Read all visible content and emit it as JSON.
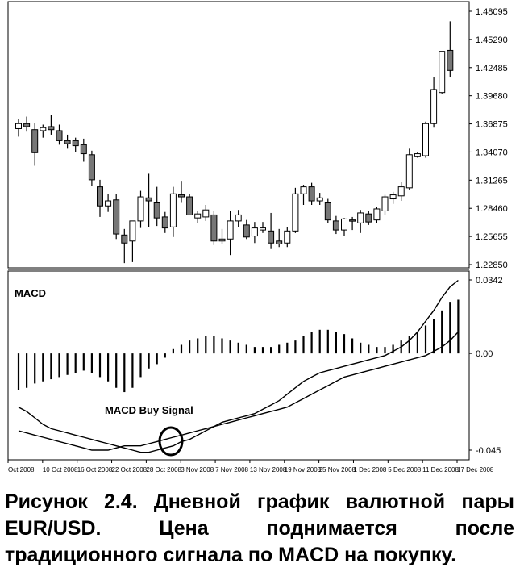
{
  "chart_data": [
    {
      "type": "candlestick",
      "title": "",
      "x_labels": [
        "Oct 2008",
        "10 Oct 2008",
        "16 Oct 2008",
        "22 Oct 2008",
        "28 Oct 2008",
        "3 Nov 2008",
        "7 Nov 2008",
        "13 Nov 2008",
        "19 Nov 2008",
        "25 Nov 2008",
        "1 Dec 2008",
        "5 Dec 2008",
        "11 Dec 2008",
        "17 Dec 2008"
      ],
      "y_ticks": [
        "1.48095",
        "1.45290",
        "1.42485",
        "1.39680",
        "1.36875",
        "1.34070",
        "1.31265",
        "1.28460",
        "1.25655",
        "1.22850"
      ],
      "ylim": [
        1.2285,
        1.48095
      ],
      "candles": [
        {
          "o": 1.364,
          "h": 1.374,
          "l": 1.356,
          "c": 1.369
        },
        {
          "o": 1.369,
          "h": 1.376,
          "l": 1.361,
          "c": 1.366
        },
        {
          "o": 1.363,
          "h": 1.37,
          "l": 1.327,
          "c": 1.34
        },
        {
          "o": 1.362,
          "h": 1.368,
          "l": 1.355,
          "c": 1.365
        },
        {
          "o": 1.366,
          "h": 1.378,
          "l": 1.358,
          "c": 1.363
        },
        {
          "o": 1.362,
          "h": 1.368,
          "l": 1.348,
          "c": 1.352
        },
        {
          "o": 1.352,
          "h": 1.358,
          "l": 1.344,
          "c": 1.349
        },
        {
          "o": 1.352,
          "h": 1.355,
          "l": 1.341,
          "c": 1.347
        },
        {
          "o": 1.348,
          "h": 1.354,
          "l": 1.331,
          "c": 1.339
        },
        {
          "o": 1.338,
          "h": 1.342,
          "l": 1.307,
          "c": 1.313
        },
        {
          "o": 1.306,
          "h": 1.313,
          "l": 1.276,
          "c": 1.287
        },
        {
          "o": 1.287,
          "h": 1.299,
          "l": 1.281,
          "c": 1.292
        },
        {
          "o": 1.293,
          "h": 1.299,
          "l": 1.254,
          "c": 1.259
        },
        {
          "o": 1.258,
          "h": 1.264,
          "l": 1.23,
          "c": 1.25
        },
        {
          "o": 1.252,
          "h": 1.27,
          "l": 1.231,
          "c": 1.272
        },
        {
          "o": 1.272,
          "h": 1.302,
          "l": 1.265,
          "c": 1.296
        },
        {
          "o": 1.295,
          "h": 1.319,
          "l": 1.266,
          "c": 1.292
        },
        {
          "o": 1.29,
          "h": 1.306,
          "l": 1.267,
          "c": 1.275
        },
        {
          "o": 1.276,
          "h": 1.281,
          "l": 1.26,
          "c": 1.265
        },
        {
          "o": 1.266,
          "h": 1.306,
          "l": 1.256,
          "c": 1.299
        },
        {
          "o": 1.298,
          "h": 1.312,
          "l": 1.29,
          "c": 1.296
        },
        {
          "o": 1.296,
          "h": 1.299,
          "l": 1.28,
          "c": 1.278
        },
        {
          "o": 1.275,
          "h": 1.282,
          "l": 1.27,
          "c": 1.279
        },
        {
          "o": 1.276,
          "h": 1.288,
          "l": 1.272,
          "c": 1.283
        },
        {
          "o": 1.278,
          "h": 1.282,
          "l": 1.248,
          "c": 1.252
        },
        {
          "o": 1.252,
          "h": 1.264,
          "l": 1.249,
          "c": 1.254
        },
        {
          "o": 1.254,
          "h": 1.282,
          "l": 1.238,
          "c": 1.272
        },
        {
          "o": 1.272,
          "h": 1.283,
          "l": 1.266,
          "c": 1.278
        },
        {
          "o": 1.268,
          "h": 1.273,
          "l": 1.254,
          "c": 1.256
        },
        {
          "o": 1.257,
          "h": 1.271,
          "l": 1.25,
          "c": 1.265
        },
        {
          "o": 1.263,
          "h": 1.271,
          "l": 1.26,
          "c": 1.265
        },
        {
          "o": 1.262,
          "h": 1.28,
          "l": 1.244,
          "c": 1.25
        },
        {
          "o": 1.252,
          "h": 1.264,
          "l": 1.246,
          "c": 1.249
        },
        {
          "o": 1.25,
          "h": 1.266,
          "l": 1.246,
          "c": 1.262
        },
        {
          "o": 1.262,
          "h": 1.305,
          "l": 1.26,
          "c": 1.299
        },
        {
          "o": 1.299,
          "h": 1.308,
          "l": 1.288,
          "c": 1.306
        },
        {
          "o": 1.306,
          "h": 1.31,
          "l": 1.288,
          "c": 1.292
        },
        {
          "o": 1.292,
          "h": 1.3,
          "l": 1.288,
          "c": 1.295
        },
        {
          "o": 1.29,
          "h": 1.294,
          "l": 1.27,
          "c": 1.273
        },
        {
          "o": 1.272,
          "h": 1.277,
          "l": 1.259,
          "c": 1.263
        },
        {
          "o": 1.263,
          "h": 1.275,
          "l": 1.257,
          "c": 1.274
        },
        {
          "o": 1.273,
          "h": 1.276,
          "l": 1.263,
          "c": 1.272
        },
        {
          "o": 1.27,
          "h": 1.283,
          "l": 1.26,
          "c": 1.28
        },
        {
          "o": 1.279,
          "h": 1.282,
          "l": 1.268,
          "c": 1.271
        },
        {
          "o": 1.273,
          "h": 1.286,
          "l": 1.27,
          "c": 1.284
        },
        {
          "o": 1.282,
          "h": 1.298,
          "l": 1.278,
          "c": 1.296
        },
        {
          "o": 1.294,
          "h": 1.301,
          "l": 1.289,
          "c": 1.298
        },
        {
          "o": 1.297,
          "h": 1.311,
          "l": 1.292,
          "c": 1.306
        },
        {
          "o": 1.305,
          "h": 1.344,
          "l": 1.303,
          "c": 1.338
        },
        {
          "o": 1.336,
          "h": 1.341,
          "l": 1.335,
          "c": 1.339
        },
        {
          "o": 1.337,
          "h": 1.371,
          "l": 1.335,
          "c": 1.369
        },
        {
          "o": 1.369,
          "h": 1.415,
          "l": 1.365,
          "c": 1.403
        },
        {
          "o": 1.4,
          "h": 1.441,
          "l": 1.399,
          "c": 1.441
        },
        {
          "o": 1.442,
          "h": 1.471,
          "l": 1.415,
          "c": 1.422
        }
      ]
    },
    {
      "type": "line",
      "title": "MACD",
      "y_ticks": [
        "0.0342",
        "0.00",
        "-0.045"
      ],
      "ylim": [
        -0.048,
        0.0342
      ],
      "annotation": "MACD Buy Signal",
      "histogram": [
        -0.017,
        -0.016,
        -0.014,
        -0.013,
        -0.012,
        -0.011,
        -0.01,
        -0.009,
        -0.008,
        -0.009,
        -0.011,
        -0.013,
        -0.016,
        -0.018,
        -0.016,
        -0.011,
        -0.007,
        -0.005,
        -0.002,
        0.002,
        0.004,
        0.006,
        0.007,
        0.008,
        0.008,
        0.007,
        0.006,
        0.005,
        0.004,
        0.003,
        0.003,
        0.003,
        0.004,
        0.005,
        0.006,
        0.008,
        0.01,
        0.011,
        0.011,
        0.01,
        0.009,
        0.007,
        0.005,
        0.004,
        0.003,
        0.003,
        0.004,
        0.006,
        0.008,
        0.01,
        0.013,
        0.016,
        0.02,
        0.024,
        0.025
      ],
      "series": [
        {
          "values": [
            -0.025,
            -0.027,
            -0.03,
            -0.033,
            -0.035,
            -0.036,
            -0.037,
            -0.038,
            -0.039,
            -0.04,
            -0.041,
            -0.042,
            -0.043,
            -0.044,
            -0.045,
            -0.046,
            -0.046,
            -0.045,
            -0.044,
            -0.043,
            -0.041,
            -0.04,
            -0.038,
            -0.036,
            -0.034,
            -0.032,
            -0.031,
            -0.03,
            -0.029,
            -0.028,
            -0.026,
            -0.024,
            -0.022,
            -0.019,
            -0.016,
            -0.013,
            -0.011,
            -0.009,
            -0.008,
            -0.007,
            -0.006,
            -0.005,
            -0.004,
            -0.003,
            -0.002,
            -0.001,
            0.001,
            0.003,
            0.006,
            0.01,
            0.015,
            0.02,
            0.026,
            0.031,
            0.034
          ]
        },
        {
          "values": [
            -0.036,
            -0.037,
            -0.038,
            -0.039,
            -0.04,
            -0.041,
            -0.042,
            -0.043,
            -0.044,
            -0.045,
            -0.045,
            -0.045,
            -0.044,
            -0.043,
            -0.043,
            -0.043,
            -0.042,
            -0.041,
            -0.04,
            -0.039,
            -0.038,
            -0.037,
            -0.036,
            -0.035,
            -0.034,
            -0.033,
            -0.032,
            -0.031,
            -0.03,
            -0.029,
            -0.028,
            -0.027,
            -0.026,
            -0.025,
            -0.023,
            -0.021,
            -0.019,
            -0.017,
            -0.015,
            -0.013,
            -0.011,
            -0.01,
            -0.009,
            -0.008,
            -0.007,
            -0.006,
            -0.005,
            -0.004,
            -0.003,
            -0.002,
            -0.001,
            0.001,
            0.003,
            0.006,
            0.01
          ]
        }
      ]
    }
  ],
  "caption": "Рисунок 2.4. Дневной график валютной пары EUR/USD. Цена поднимается после традиционного сигнала по MACD на покупку.",
  "colors": {
    "bull": "#ffffff",
    "bear": "#777777",
    "line": "#000000"
  }
}
